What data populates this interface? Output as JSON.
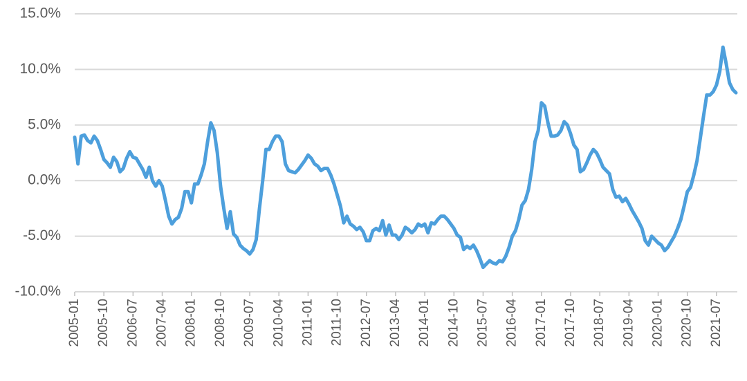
{
  "chart_data": {
    "type": "line",
    "categories": [
      "2005-01",
      null,
      null,
      null,
      null,
      null,
      null,
      null,
      null,
      "2005-10",
      null,
      null,
      null,
      null,
      null,
      null,
      null,
      null,
      "2006-07",
      null,
      null,
      null,
      null,
      null,
      null,
      null,
      null,
      "2007-04",
      null,
      null,
      null,
      null,
      null,
      null,
      null,
      null,
      "2008-01",
      null,
      null,
      null,
      null,
      null,
      null,
      null,
      null,
      "2008-10",
      null,
      null,
      null,
      null,
      null,
      null,
      null,
      null,
      "2009-07",
      null,
      null,
      null,
      null,
      null,
      null,
      null,
      null,
      "2010-04",
      null,
      null,
      null,
      null,
      null,
      null,
      null,
      null,
      "2011-01",
      null,
      null,
      null,
      null,
      null,
      null,
      null,
      null,
      "2011-10",
      null,
      null,
      null,
      null,
      null,
      null,
      null,
      null,
      "2012-07",
      null,
      null,
      null,
      null,
      null,
      null,
      null,
      null,
      "2013-04",
      null,
      null,
      null,
      null,
      null,
      null,
      null,
      null,
      "2014-01",
      null,
      null,
      null,
      null,
      null,
      null,
      null,
      null,
      "2014-10",
      null,
      null,
      null,
      null,
      null,
      null,
      null,
      null,
      "2015-07",
      null,
      null,
      null,
      null,
      null,
      null,
      null,
      null,
      "2016-04",
      null,
      null,
      null,
      null,
      null,
      null,
      null,
      null,
      "2017-01",
      null,
      null,
      null,
      null,
      null,
      null,
      null,
      null,
      "2017-10",
      null,
      null,
      null,
      null,
      null,
      null,
      null,
      null,
      "2018-07",
      null,
      null,
      null,
      null,
      null,
      null,
      null,
      null,
      "2019-04",
      null,
      null,
      null,
      null,
      null,
      null,
      null,
      null,
      "2020-01",
      null,
      null,
      null,
      null,
      null,
      null,
      null,
      null,
      "2020-10",
      null,
      null,
      null,
      null,
      null,
      null,
      null,
      null,
      "2021-07",
      null,
      null,
      null,
      null,
      null,
      null
    ],
    "values": [
      3.9,
      1.5,
      4.0,
      4.1,
      3.6,
      3.4,
      4.0,
      3.6,
      2.8,
      1.9,
      1.6,
      1.2,
      2.1,
      1.7,
      0.8,
      1.1,
      2.0,
      2.6,
      2.1,
      2.0,
      1.5,
      1.0,
      0.3,
      1.2,
      0.0,
      -0.5,
      0.0,
      -0.5,
      -1.8,
      -3.2,
      -3.9,
      -3.5,
      -3.3,
      -2.5,
      -1.0,
      -1.0,
      -2.0,
      -0.3,
      -0.3,
      0.5,
      1.5,
      3.5,
      5.2,
      4.5,
      2.5,
      -0.5,
      -2.5,
      -4.3,
      -2.8,
      -4.8,
      -5.1,
      -5.8,
      -6.1,
      -6.3,
      -6.6,
      -6.2,
      -5.3,
      -2.5,
      0.0,
      2.8,
      2.8,
      3.5,
      4.0,
      4.0,
      3.5,
      1.5,
      0.9,
      0.8,
      0.7,
      1.0,
      1.4,
      1.8,
      2.3,
      2.0,
      1.5,
      1.3,
      0.9,
      1.1,
      1.1,
      0.5,
      -0.3,
      -1.3,
      -2.3,
      -3.8,
      -3.2,
      -3.9,
      -4.1,
      -4.4,
      -4.2,
      -4.6,
      -5.4,
      -5.4,
      -4.5,
      -4.3,
      -4.5,
      -3.6,
      -4.9,
      -4.0,
      -4.9,
      -4.9,
      -5.3,
      -4.9,
      -4.2,
      -4.4,
      -4.7,
      -4.4,
      -3.9,
      -4.1,
      -3.9,
      -4.7,
      -3.8,
      -3.9,
      -3.5,
      -3.2,
      -3.2,
      -3.5,
      -3.9,
      -4.3,
      -4.9,
      -5.1,
      -6.2,
      -5.9,
      -6.1,
      -5.8,
      -6.3,
      -7.0,
      -7.8,
      -7.5,
      -7.2,
      -7.4,
      -7.5,
      -7.2,
      -7.3,
      -6.8,
      -6.0,
      -5.0,
      -4.5,
      -3.5,
      -2.2,
      -1.8,
      -0.8,
      1.0,
      3.5,
      4.5,
      7.0,
      6.7,
      5.2,
      4.0,
      4.0,
      4.1,
      4.5,
      5.3,
      5.0,
      4.2,
      3.2,
      2.8,
      0.8,
      1.0,
      1.6,
      2.3,
      2.8,
      2.5,
      1.9,
      1.2,
      0.9,
      0.6,
      -0.8,
      -1.5,
      -1.4,
      -1.9,
      -1.6,
      -2.1,
      -2.7,
      -3.2,
      -3.7,
      -4.3,
      -5.4,
      -5.8,
      -5.0,
      -5.3,
      -5.6,
      -5.8,
      -6.3,
      -6.0,
      -5.5,
      -5.0,
      -4.3,
      -3.5,
      -2.3,
      -1.0,
      -0.6,
      0.5,
      1.8,
      3.8,
      5.8,
      7.7,
      7.7,
      8.0,
      8.6,
      9.8,
      12.0,
      10.5,
      8.8,
      8.2,
      7.9
    ],
    "color": "#4d9fdc",
    "ylim": [
      -10,
      15
    ],
    "yticks": [
      {
        "value": -10,
        "label": "-10.0%"
      },
      {
        "value": -5,
        "label": "-5.0%"
      },
      {
        "value": 0,
        "label": "0.0%"
      },
      {
        "value": 5,
        "label": "5.0%"
      },
      {
        "value": 10,
        "label": "10.0%"
      },
      {
        "value": 15,
        "label": "15.0%"
      }
    ],
    "grid": true
  }
}
